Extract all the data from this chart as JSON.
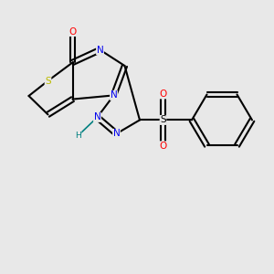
{
  "bg_color": "#e8e8e8",
  "bond_color": "#000000",
  "bond_width": 1.5,
  "atom_colors": {
    "S": "#cccc00",
    "N": "#0000ff",
    "O": "#ff0000",
    "H": "#008080",
    "S_sulfonyl": "#ff8800"
  },
  "font_size": 7.5
}
